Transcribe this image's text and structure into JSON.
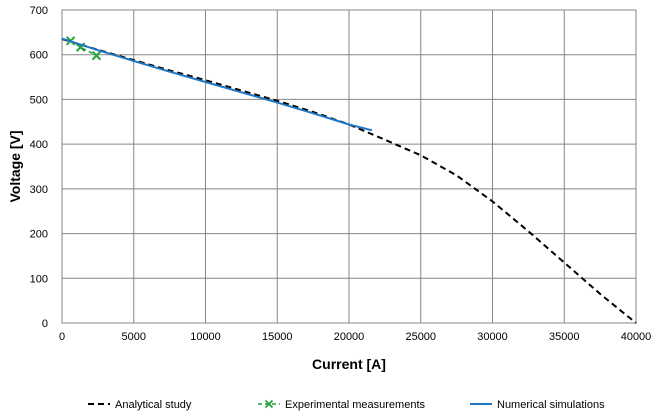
{
  "chart_data": {
    "type": "line",
    "title": "",
    "xlabel": "Current [A]",
    "ylabel": "Voltage [V]",
    "xlim": [
      0,
      40000
    ],
    "ylim": [
      0,
      700
    ],
    "xticks": [
      0,
      5000,
      10000,
      15000,
      20000,
      25000,
      30000,
      35000,
      40000
    ],
    "yticks": [
      0,
      100,
      200,
      300,
      400,
      500,
      600,
      700
    ],
    "grid": true,
    "legend_position": "bottom",
    "series": [
      {
        "name": "Analytical study",
        "style": "dashed",
        "color": "#000000",
        "x": [
          0,
          2500,
          5000,
          7500,
          10000,
          12500,
          15000,
          17500,
          20000,
          22500,
          25000,
          27500,
          30000,
          32500,
          35000,
          37500,
          40000
        ],
        "y": [
          635,
          611,
          588,
          565,
          543,
          520,
          497,
          472,
          444,
          410,
          375,
          330,
          272,
          205,
          135,
          65,
          0
        ]
      },
      {
        "name": "Experimental measurements",
        "style": "dashed-marker-x",
        "color": "#22a33a",
        "x": [
          600,
          1300,
          2400
        ],
        "y": [
          631,
          617,
          598
        ]
      },
      {
        "name": "Numerical simulations",
        "style": "solid",
        "color": "#1f77c4",
        "x": [
          0,
          2500,
          5000,
          7500,
          10000,
          12500,
          15000,
          17500,
          20000,
          21600
        ],
        "y": [
          636,
          610,
          586,
          562,
          539,
          516,
          493,
          469,
          444,
          431
        ]
      }
    ]
  }
}
